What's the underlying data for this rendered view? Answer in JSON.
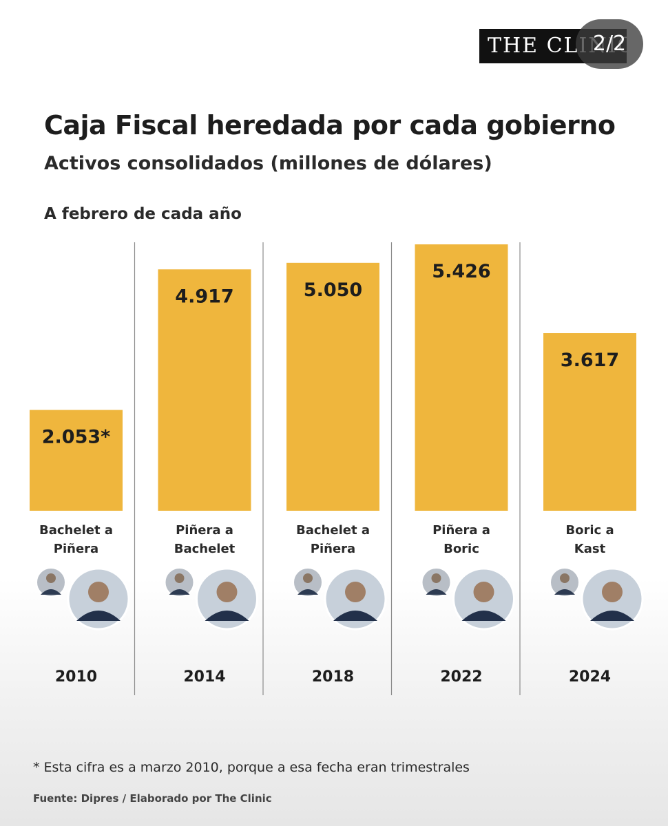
{
  "header": {
    "brand": "THE CLINIC",
    "slide_counter": "2/2"
  },
  "chart_data": {
    "type": "bar",
    "title": "Caja Fiscal heredada por cada gobierno",
    "subtitle": "Activos consolidados (millones de dólares)",
    "note": "A febrero de cada año",
    "categories": [
      "2010",
      "2014",
      "2018",
      "2022",
      "2024"
    ],
    "transitions": [
      [
        "Bachelet a",
        "Piñera"
      ],
      [
        "Piñera a",
        "Bachelet"
      ],
      [
        "Bachelet a",
        "Piñera"
      ],
      [
        "Piñera a",
        "Boric"
      ],
      [
        "Boric a",
        "Kast"
      ]
    ],
    "values": [
      2053,
      4917,
      5050,
      5426,
      3617
    ],
    "value_labels": [
      "2.053*",
      "4.917",
      "5.050",
      "5.426",
      "3.617"
    ],
    "ylim": [
      0,
      5426
    ],
    "bar_color": "#efb63d",
    "xlabel": "",
    "ylabel": ""
  },
  "footer": {
    "footnote": "* Esta cifra es a marzo 2010, porque a esa fecha eran trimestrales",
    "source": "Fuente: Dipres / Elaborado por The Clinic"
  }
}
